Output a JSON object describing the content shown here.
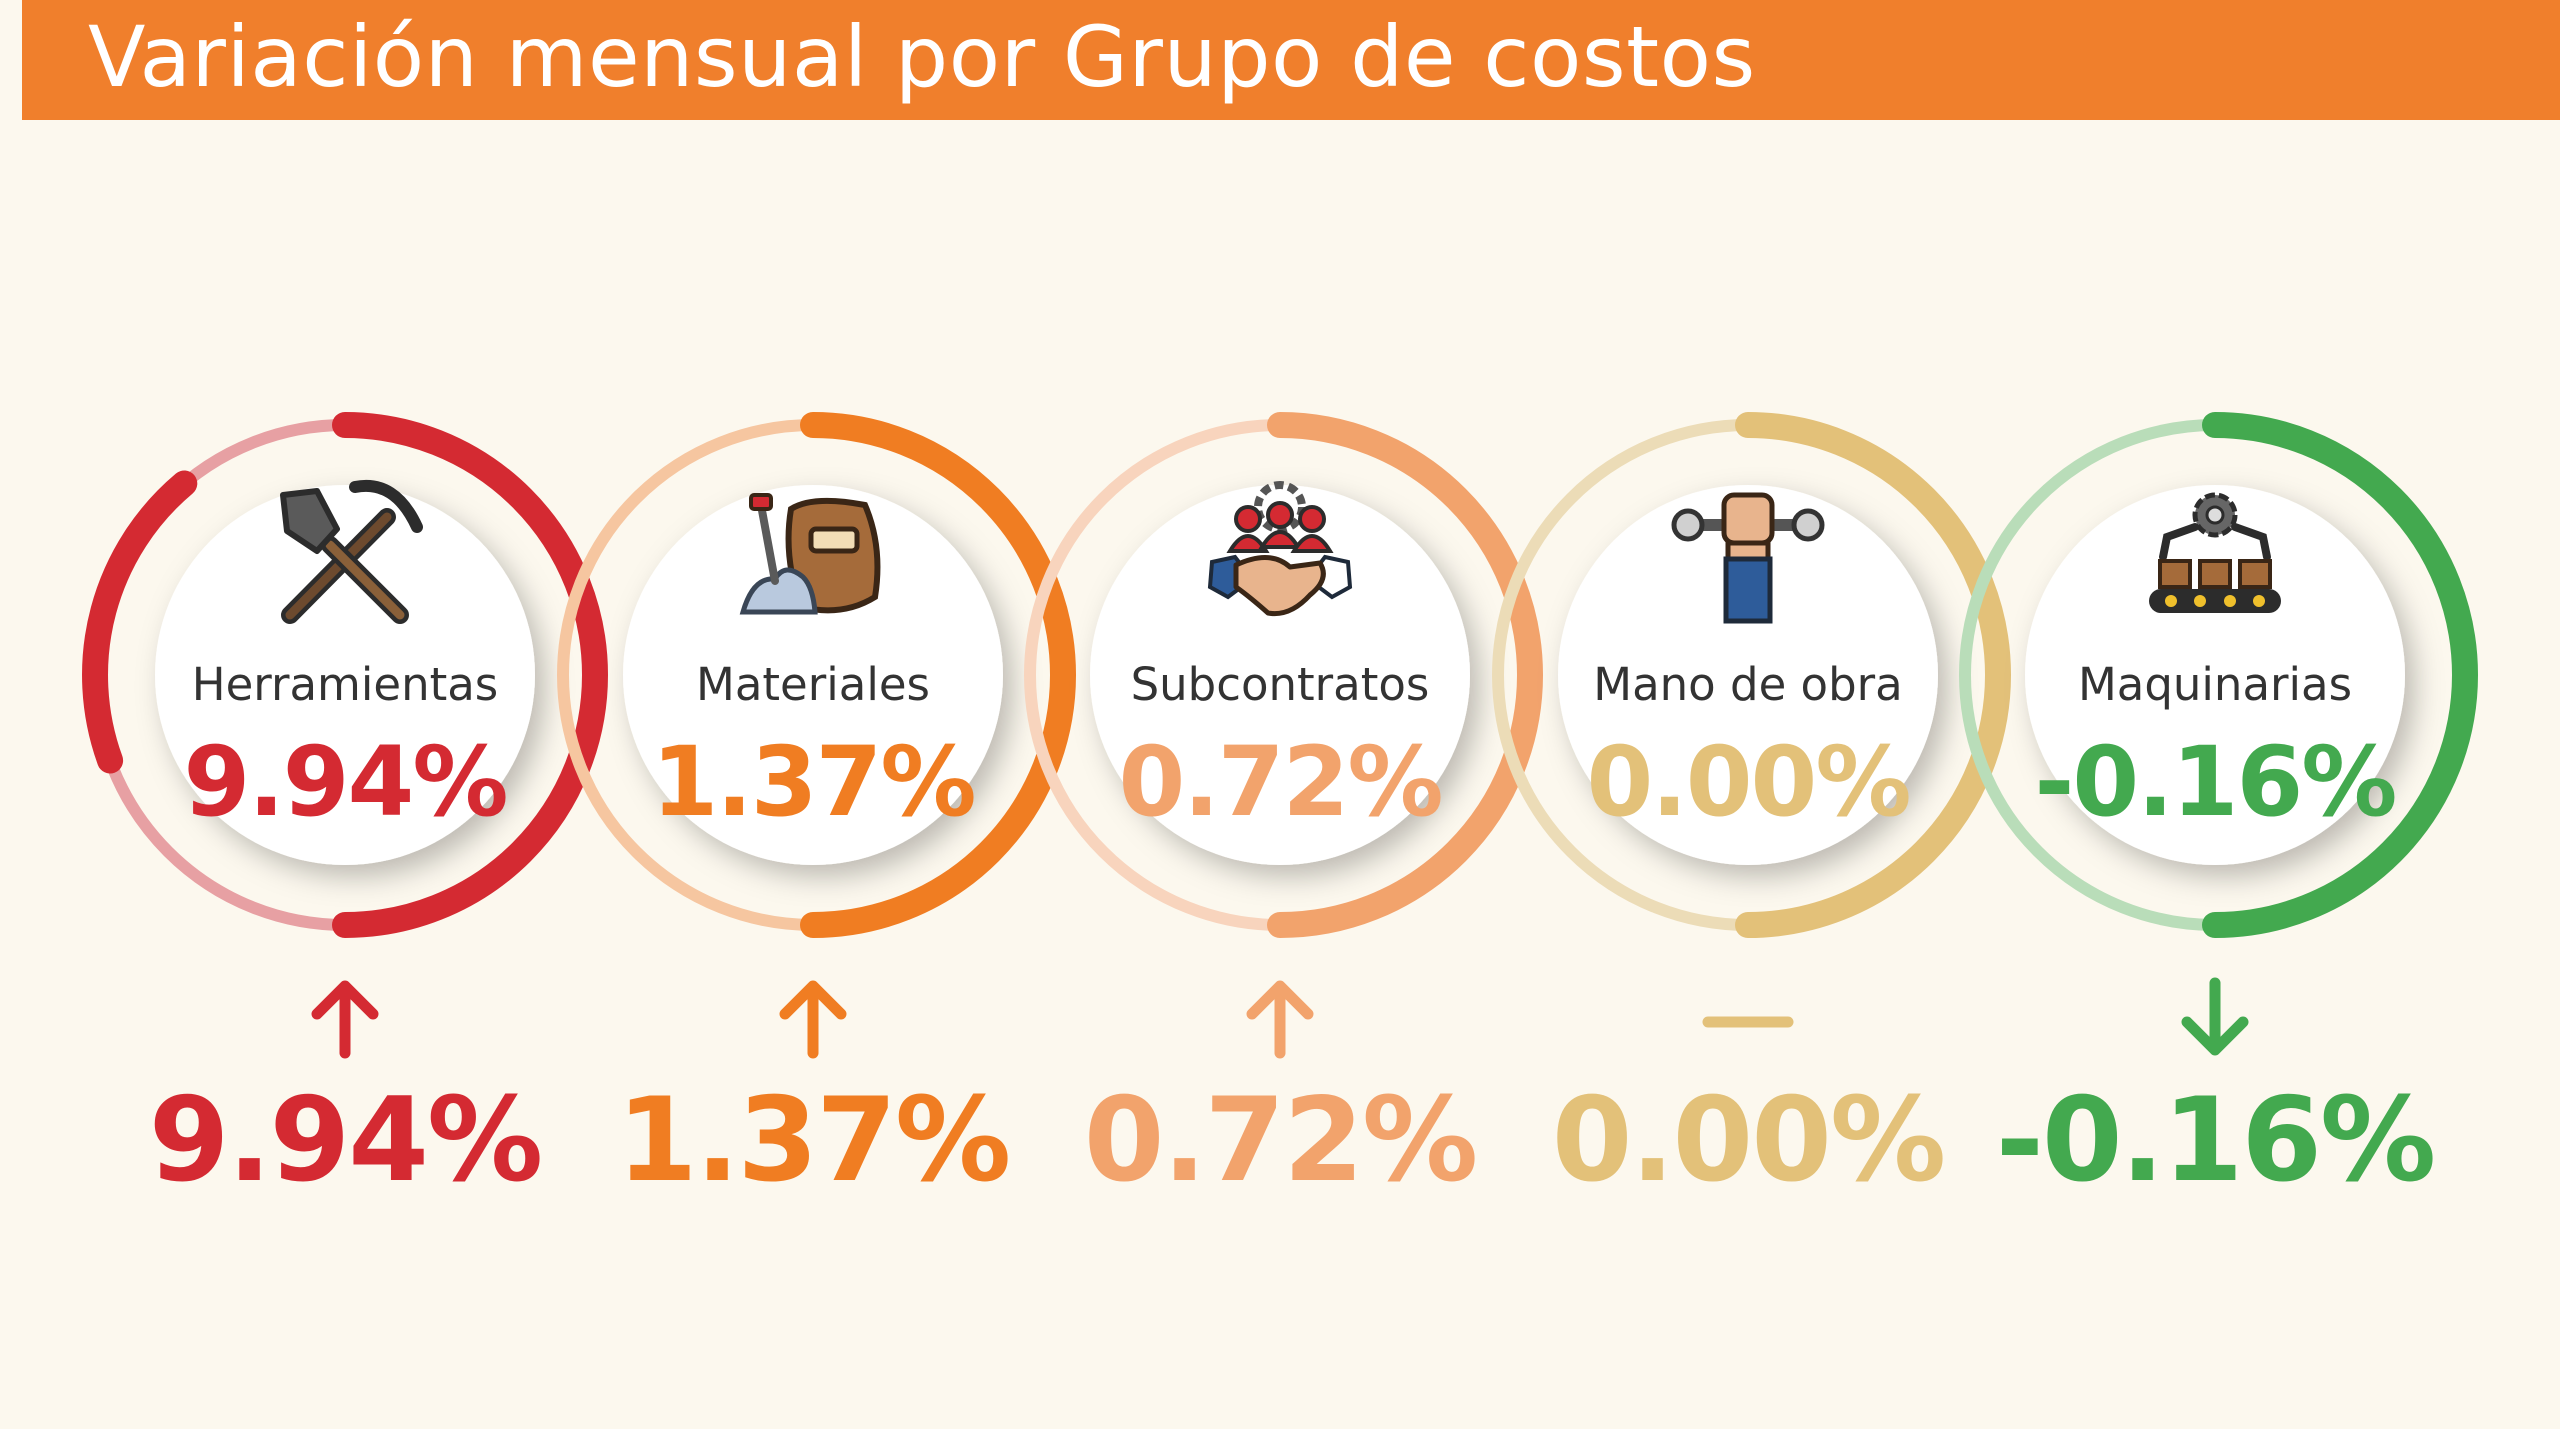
{
  "header": {
    "title": "Variación mensual por Grupo de costos"
  },
  "chart_data": {
    "type": "gauge",
    "title": "Variación mensual por Grupo de costos",
    "unit": "%",
    "categories": [
      "Herramientas",
      "Materiales",
      "Subcontratos",
      "Mano de obra",
      "Maquinarias"
    ],
    "values": [
      9.94,
      1.37,
      0.72,
      0.0,
      -0.16
    ],
    "labels": [
      "9.94%",
      "1.37%",
      "0.72%",
      "0.00%",
      "-0.16%"
    ],
    "trends": [
      "up",
      "up",
      "up",
      "flat",
      "down"
    ],
    "icons": [
      "shovel-pickaxe-icon",
      "cement-bag-icon",
      "handshake-team-icon",
      "fist-wrench-icon",
      "machinery-conveyor-icon"
    ],
    "colors": [
      "#d42a32",
      "#f07d22",
      "#f2a36c",
      "#e3c179",
      "#43a94f"
    ],
    "track_colors": [
      "#e7a0a3",
      "#f6c6a0",
      "#f8d4bd",
      "#ecdcb7",
      "#b9ddb9"
    ]
  }
}
